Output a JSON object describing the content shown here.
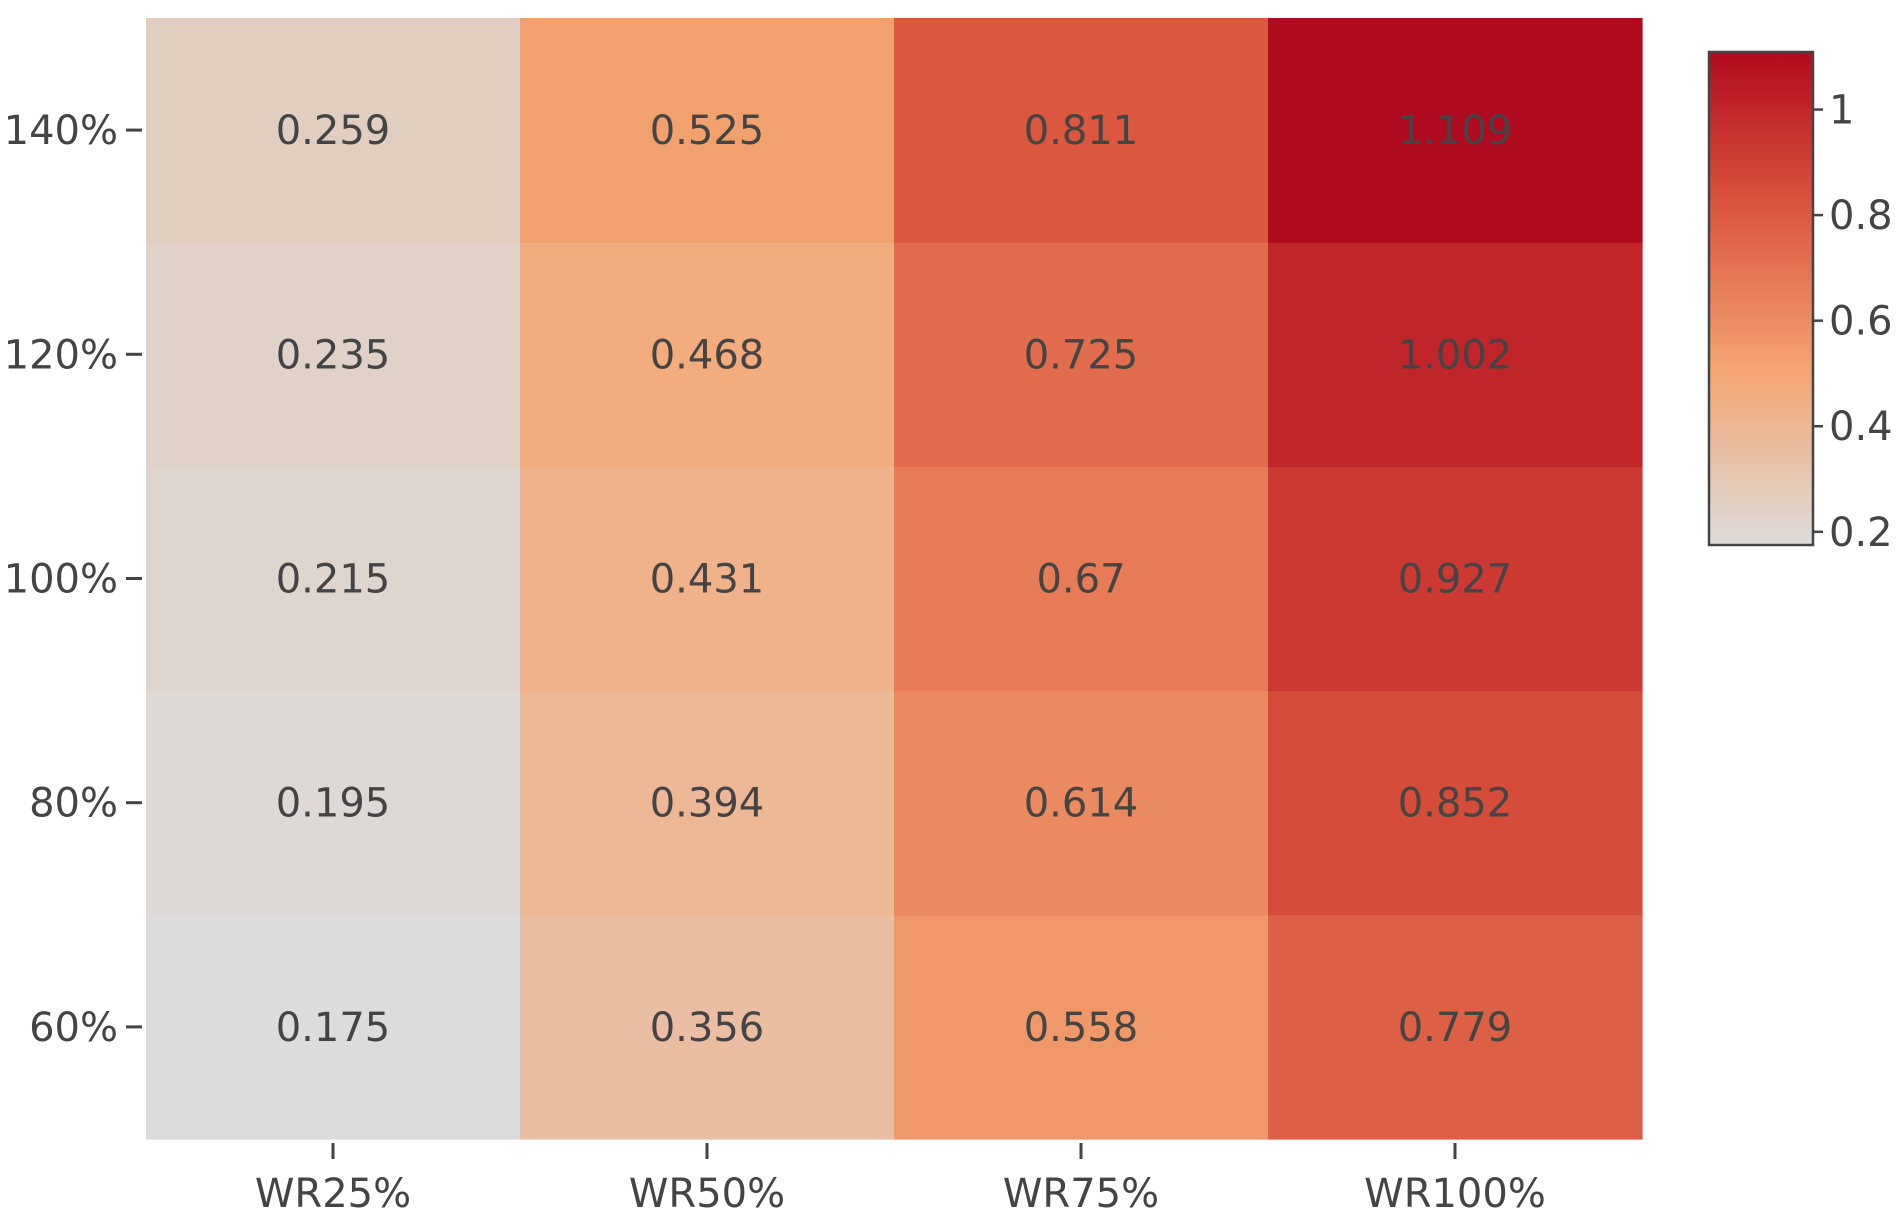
{
  "chart_data": {
    "type": "heatmap",
    "title": "",
    "xlabel": "",
    "ylabel": "",
    "x_categories": [
      "WR25%",
      "WR50%",
      "WR75%",
      "WR100%"
    ],
    "y_categories": [
      "60%",
      "80%",
      "100%",
      "120%",
      "140%"
    ],
    "values": [
      [
        0.175,
        0.356,
        0.558,
        0.779
      ],
      [
        0.195,
        0.394,
        0.614,
        0.852
      ],
      [
        0.215,
        0.431,
        0.67,
        0.927
      ],
      [
        0.235,
        0.468,
        0.725,
        1.002
      ],
      [
        0.259,
        0.525,
        0.811,
        1.109
      ]
    ],
    "value_labels": [
      [
        "0.175",
        "0.356",
        "0.558",
        "0.779"
      ],
      [
        "0.195",
        "0.394",
        "0.614",
        "0.852"
      ],
      [
        "0.215",
        "0.431",
        "0.67",
        "0.927"
      ],
      [
        "0.235",
        "0.468",
        "0.725",
        "1.002"
      ],
      [
        "0.259",
        "0.525",
        "0.811",
        "1.109"
      ]
    ],
    "colorscale": {
      "min": 0.175,
      "max": 1.109,
      "stops": [
        {
          "v": 0.0,
          "color": "#dcdcdc"
        },
        {
          "v": 0.35,
          "color": "#f5a673"
        },
        {
          "v": 0.7,
          "color": "#d9523d"
        },
        {
          "v": 1.0,
          "color": "#b00a1e"
        }
      ]
    },
    "colorbar": {
      "ticks": [
        0.2,
        0.4,
        0.6,
        0.8,
        1
      ],
      "tick_labels": [
        "0.2",
        "0.4",
        "0.6",
        "0.8",
        "1"
      ]
    }
  }
}
